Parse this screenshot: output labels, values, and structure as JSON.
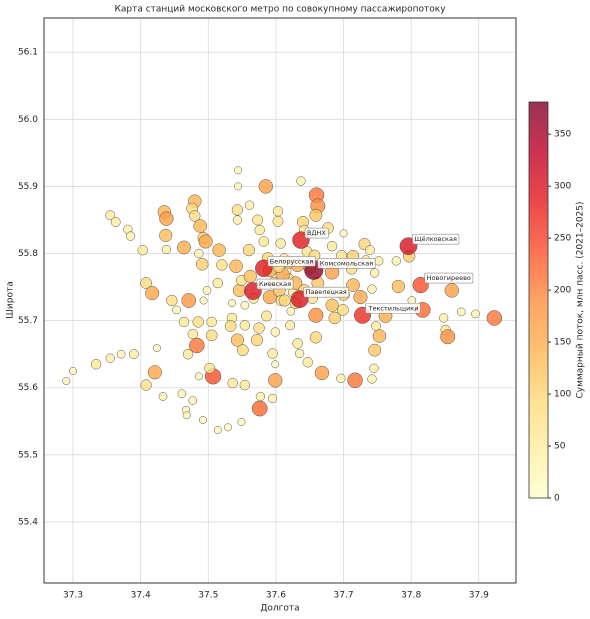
{
  "chart_data": {
    "type": "scatter",
    "title": "Карта станций московского метро по совокупному пассажиропотоку",
    "x_label": "Долгота",
    "y_label": "Широта",
    "colorbar_label": "Суммарный поток, млн пасс. (2021–2025)",
    "cmap": "YlOrRd",
    "clim": [
      0,
      381
    ],
    "cticks": [
      0,
      50,
      100,
      150,
      200,
      250,
      300,
      350
    ],
    "xlim": [
      37.257,
      37.955
    ],
    "ylim": [
      55.309,
      56.151
    ],
    "xticks": [
      37.3,
      37.4,
      37.5,
      37.6,
      37.7,
      37.8,
      37.9
    ],
    "yticks": [
      55.4,
      55.5,
      55.6,
      55.7,
      55.8,
      55.9,
      {
        "value": 56,
        "label": "56.0"
      },
      56.1
    ],
    "grid": true,
    "x": [
      37.29,
      37.3,
      37.334,
      37.355,
      37.371,
      37.39,
      37.355,
      37.363,
      37.381,
      37.385,
      37.403,
      37.408,
      37.417,
      37.408,
      37.421,
      37.424,
      37.435,
      37.438,
      37.437,
      37.438,
      37.446,
      37.453,
      37.464,
      37.464,
      37.471,
      37.477,
      37.47,
      37.461,
      37.467,
      37.468,
      37.477,
      37.433,
      37.48,
      37.476,
      37.48,
      37.488,
      37.493,
      37.496,
      37.486,
      37.491,
      37.498,
      37.493,
      37.485,
      37.483,
      37.486,
      37.492,
      37.507,
      37.502,
      37.505,
      37.505,
      37.516,
      37.52,
      37.514,
      37.514,
      37.529,
      37.535,
      37.533,
      37.536,
      37.543,
      37.541,
      37.543,
      37.543,
      37.535,
      37.546,
      37.549,
      37.554,
      37.554,
      37.551,
      37.554,
      37.549,
      37.561,
      37.56,
      37.562,
      37.567,
      37.572,
      37.575,
      37.576,
      37.577,
      37.573,
      37.576,
      37.582,
      37.585,
      37.588,
      37.591,
      37.591,
      37.586,
      37.595,
      37.599,
      37.599,
      37.595,
      37.605,
      37.608,
      37.599,
      37.603,
      37.603,
      37.607,
      37.612,
      37.616,
      37.619,
      37.625,
      37.629,
      37.622,
      37.621,
      37.632,
      37.635,
      37.64,
      37.642,
      37.646,
      37.65,
      37.66,
      37.662,
      37.659,
      37.657,
      37.662,
      37.654,
      37.659,
      37.659,
      37.668,
      37.647,
      37.677,
      37.683,
      37.683,
      37.677,
      37.683,
      37.687,
      37.697,
      37.7,
      37.699,
      37.696,
      37.7,
      37.714,
      37.712,
      37.714,
      37.717,
      37.725,
      37.731,
      37.733,
      37.739,
      37.742,
      37.746,
      37.748,
      37.746,
      37.745,
      37.742,
      37.752,
      37.753,
      37.762,
      37.781,
      37.778,
      37.797,
      37.801,
      37.817,
      37.848,
      37.851,
      37.854,
      37.86,
      37.874,
      37.895,
      37.923,
      37.637,
      37.544,
      37.544,
      37.61,
      37.629,
      37.619,
      37.604,
      37.632,
      37.642,
      37.613,
      37.597,
      37.637,
      37.796,
      37.582,
      37.656,
      37.814,
      37.566,
      37.635,
      37.728
    ],
    "y": [
      55.61,
      55.625,
      55.635,
      55.644,
      55.65,
      55.65,
      55.857,
      55.847,
      55.836,
      55.826,
      55.805,
      55.756,
      55.741,
      55.604,
      55.623,
      55.659,
      55.862,
      55.852,
      55.827,
      55.806,
      55.73,
      55.716,
      55.809,
      55.698,
      55.73,
      55.68,
      55.65,
      55.591,
      55.567,
      55.559,
      55.581,
      55.587,
      55.878,
      55.867,
      55.856,
      55.841,
      55.823,
      55.818,
      55.8,
      55.784,
      55.745,
      55.73,
      55.698,
      55.663,
      55.617,
      55.552,
      55.617,
      55.629,
      55.698,
      55.678,
      55.805,
      55.783,
      55.537,
      55.756,
      55.541,
      55.704,
      55.692,
      55.607,
      55.671,
      55.781,
      55.865,
      55.85,
      55.726,
      55.745,
      55.76,
      55.723,
      55.693,
      55.656,
      55.604,
      55.549,
      55.872,
      55.805,
      55.766,
      55.733,
      55.671,
      55.689,
      55.569,
      55.587,
      55.85,
      55.835,
      55.818,
      55.9,
      55.793,
      55.775,
      55.735,
      55.707,
      55.651,
      55.635,
      55.611,
      55.584,
      55.745,
      55.73,
      55.683,
      55.863,
      55.848,
      55.815,
      55.793,
      55.774,
      55.762,
      55.742,
      55.726,
      55.714,
      55.693,
      55.666,
      55.651,
      55.847,
      55.835,
      55.803,
      55.778,
      55.887,
      55.871,
      55.857,
      55.797,
      55.756,
      55.733,
      55.708,
      55.675,
      55.622,
      55.638,
      55.838,
      55.811,
      55.772,
      55.742,
      55.723,
      55.704,
      55.797,
      55.739,
      55.716,
      55.614,
      55.83,
      55.796,
      55.777,
      55.753,
      55.611,
      55.735,
      55.814,
      55.79,
      55.805,
      55.747,
      55.771,
      55.692,
      55.656,
      55.629,
      55.613,
      55.789,
      55.677,
      55.707,
      55.751,
      55.789,
      55.796,
      55.73,
      55.716,
      55.704,
      55.686,
      55.676,
      55.745,
      55.713,
      55.71,
      55.704,
      55.908,
      55.924,
      55.9,
      55.768,
      55.756,
      55.787,
      55.78,
      55.783,
      55.745,
      55.73,
      55.756,
      55.82,
      55.811,
      55.778,
      55.775,
      55.753,
      55.744,
      55.732,
      55.708
    ],
    "values": [
      20,
      20,
      60,
      40,
      30,
      50,
      50,
      50,
      40,
      40,
      60,
      90,
      160,
      80,
      160,
      20,
      140,
      170,
      130,
      40,
      80,
      30,
      150,
      60,
      180,
      60,
      60,
      30,
      20,
      20,
      30,
      30,
      140,
      90,
      80,
      140,
      100,
      160,
      40,
      110,
      30,
      20,
      80,
      210,
      20,
      20,
      240,
      70,
      60,
      90,
      140,
      80,
      20,
      60,
      20,
      60,
      90,
      60,
      130,
      140,
      80,
      40,
      20,
      130,
      70,
      30,
      60,
      90,
      60,
      20,
      40,
      100,
      130,
      60,
      100,
      80,
      220,
      40,
      70,
      60,
      60,
      170,
      100,
      150,
      160,
      70,
      60,
      20,
      170,
      40,
      120,
      80,
      40,
      60,
      70,
      60,
      50,
      40,
      80,
      50,
      90,
      30,
      50,
      60,
      40,
      100,
      60,
      70,
      110,
      210,
      190,
      120,
      90,
      120,
      70,
      190,
      100,
      170,
      60,
      90,
      60,
      170,
      50,
      130,
      110,
      70,
      110,
      90,
      40,
      20,
      110,
      80,
      140,
      210,
      160,
      100,
      50,
      50,
      40,
      40,
      50,
      120,
      40,
      40,
      40,
      140,
      150,
      130,
      40,
      110,
      30,
      220,
      40,
      60,
      190,
      170,
      30,
      30,
      210,
      40,
      20,
      20,
      160,
      140,
      120,
      90,
      160,
      110,
      100,
      110,
      290,
      300,
      290,
      370,
      240,
      300,
      300,
      270
    ],
    "point_labels": [
      null,
      null,
      null,
      null,
      null,
      null,
      null,
      null,
      null,
      null,
      null,
      null,
      null,
      null,
      null,
      null,
      null,
      null,
      null,
      null,
      null,
      null,
      null,
      null,
      null,
      null,
      null,
      null,
      null,
      null,
      null,
      null,
      null,
      null,
      null,
      null,
      null,
      null,
      null,
      null,
      null,
      null,
      null,
      null,
      null,
      null,
      null,
      null,
      null,
      null,
      null,
      null,
      null,
      null,
      null,
      null,
      null,
      null,
      null,
      null,
      null,
      null,
      null,
      null,
      null,
      null,
      null,
      null,
      null,
      null,
      null,
      null,
      null,
      null,
      null,
      null,
      null,
      null,
      null,
      null,
      null,
      null,
      null,
      null,
      null,
      null,
      null,
      null,
      null,
      null,
      null,
      null,
      null,
      null,
      null,
      null,
      null,
      null,
      null,
      null,
      null,
      null,
      null,
      null,
      null,
      null,
      null,
      null,
      null,
      null,
      null,
      null,
      null,
      null,
      null,
      null,
      null,
      null,
      null,
      null,
      null,
      null,
      null,
      null,
      null,
      null,
      null,
      null,
      null,
      null,
      null,
      null,
      null,
      null,
      null,
      null,
      null,
      null,
      null,
      null,
      null,
      null,
      null,
      null,
      null,
      null,
      null,
      null,
      null,
      null,
      null,
      null,
      null,
      null,
      null,
      null,
      null,
      null,
      null,
      null,
      null,
      null,
      null,
      null,
      null,
      null,
      null,
      null,
      null,
      null,
      "ВДНХ",
      "Щёлковская",
      "Белорусская",
      "Комсомольская",
      "Новогиреево",
      "Киевская",
      "Павелецкая",
      "Текстильщики"
    ]
  }
}
